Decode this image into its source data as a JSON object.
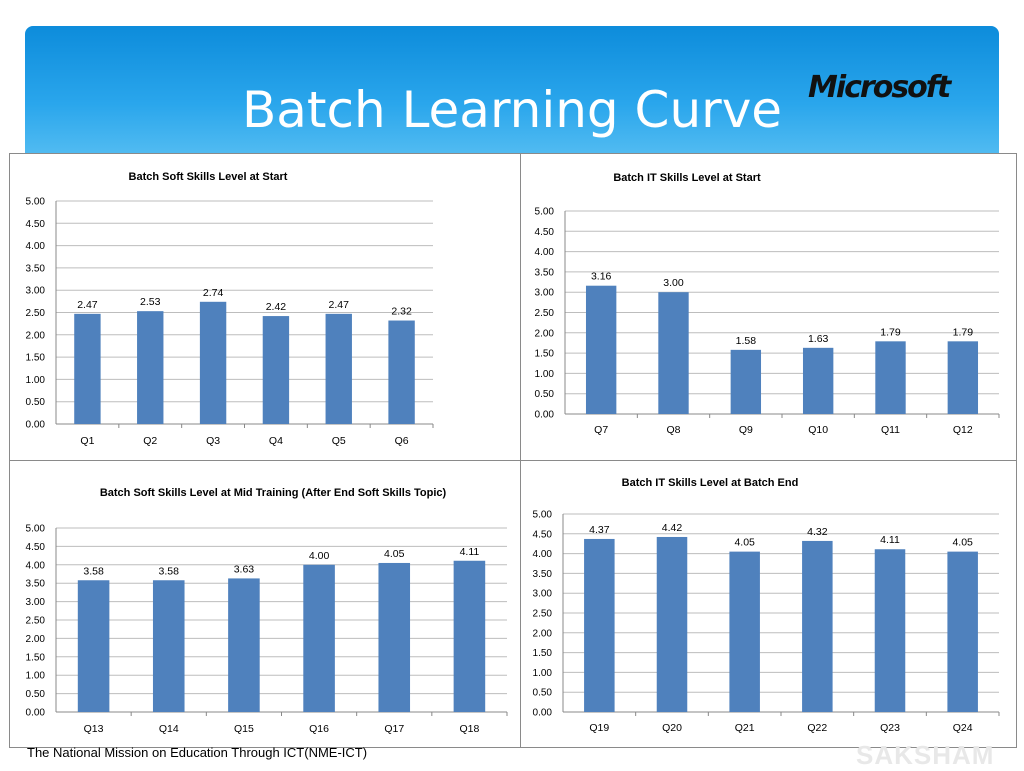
{
  "header": {
    "title": "Batch Learning Curve",
    "logo_text": "Microsoft"
  },
  "footer": {
    "text": "The National Mission on Education Through ICT(NME-ICT)",
    "watermark": "SAKSHAM"
  },
  "colors": {
    "bar": "#4f81bd",
    "header_top": "#0d8cdb",
    "header_bottom": "#5cc1f3"
  },
  "chart_data": [
    {
      "type": "bar",
      "title": "Batch Soft Skills Level at Start",
      "categories": [
        "Q1",
        "Q2",
        "Q3",
        "Q4",
        "Q5",
        "Q6"
      ],
      "values": [
        2.47,
        2.53,
        2.74,
        2.42,
        2.47,
        2.32
      ],
      "labels": [
        "2.47",
        "2.53",
        "2.74",
        "2.42",
        "2.47",
        "2.32"
      ],
      "yticks": [
        "0.00",
        "0.50",
        "1.00",
        "1.50",
        "2.00",
        "2.50",
        "3.00",
        "3.50",
        "4.00",
        "4.50",
        "5.00"
      ],
      "ylim": [
        0,
        5
      ],
      "grid": true
    },
    {
      "type": "bar",
      "title": "Batch IT Skills Level at Start",
      "categories": [
        "Q7",
        "Q8",
        "Q9",
        "Q10",
        "Q11",
        "Q12"
      ],
      "values": [
        3.16,
        3.0,
        1.58,
        1.63,
        1.79,
        1.79
      ],
      "labels": [
        "3.16",
        "3.00",
        "1.58",
        "1.63",
        "1.79",
        "1.79"
      ],
      "yticks": [
        "0.00",
        "0.50",
        "1.00",
        "1.50",
        "2.00",
        "2.50",
        "3.00",
        "3.50",
        "4.00",
        "4.50",
        "5.00"
      ],
      "ylim": [
        0,
        5
      ],
      "grid": true
    },
    {
      "type": "bar",
      "title": "Batch Soft Skills Level at Mid Training (After End Soft Skills Topic)",
      "categories": [
        "Q13",
        "Q14",
        "Q15",
        "Q16",
        "Q17",
        "Q18"
      ],
      "values": [
        3.58,
        3.58,
        3.63,
        4.0,
        4.05,
        4.11
      ],
      "labels": [
        "3.58",
        "3.58",
        "3.63",
        "4.00",
        "4.05",
        "4.11"
      ],
      "yticks": [
        "0.00",
        "0.50",
        "1.00",
        "1.50",
        "2.00",
        "2.50",
        "3.00",
        "3.50",
        "4.00",
        "4.50",
        "5.00"
      ],
      "ylim": [
        0,
        5
      ],
      "grid": true
    },
    {
      "type": "bar",
      "title": "Batch IT Skills Level at Batch End",
      "categories": [
        "Q19",
        "Q20",
        "Q21",
        "Q22",
        "Q23",
        "Q24"
      ],
      "values": [
        4.37,
        4.42,
        4.05,
        4.32,
        4.11,
        4.05
      ],
      "labels": [
        "4.37",
        "4.42",
        "4.05",
        "4.32",
        "4.11",
        "4.05"
      ],
      "yticks": [
        "0.00",
        "0.50",
        "1.00",
        "1.50",
        "2.00",
        "2.50",
        "3.00",
        "3.50",
        "4.00",
        "4.50",
        "5.00"
      ],
      "ylim": [
        0,
        5
      ],
      "grid": true
    }
  ]
}
